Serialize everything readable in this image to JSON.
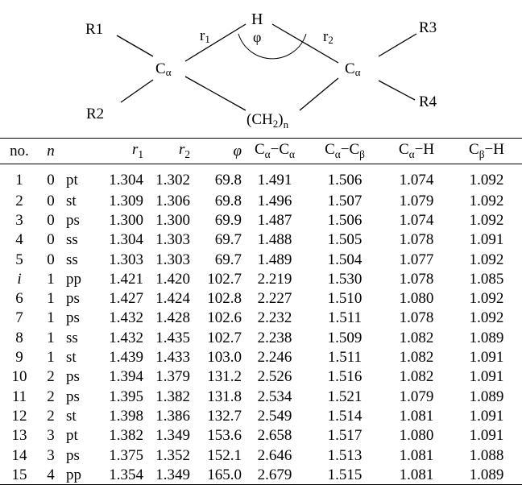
{
  "diagram": {
    "substituents": [
      "R1",
      "R2",
      "R3",
      "R4"
    ],
    "left_carbon": "C",
    "right_carbon": "C",
    "carbon_sub": "α",
    "hydrogen": "H",
    "angle": "φ",
    "bond_r1": "r",
    "bond_r1_sub": "1",
    "bond_r2": "r",
    "bond_r2_sub": "2",
    "bridge_main": "(CH",
    "bridge_sub2": "2",
    "bridge_close": ")",
    "bridge_n": "n"
  },
  "table": {
    "headers": {
      "no": "no.",
      "n": "n",
      "type": "",
      "r1": "r",
      "r1_sub": "1",
      "r2": "r",
      "r2_sub": "2",
      "phi": "φ",
      "cc": "C",
      "cc_sub1": "α",
      "cc_dash": "−C",
      "cc_sub2": "α",
      "ccb": "C",
      "ccb_sub1": "α",
      "ccb_dash": "−C",
      "ccb_sub2": "β",
      "cah": "C",
      "cah_sub": "α",
      "cah_dash": "−H",
      "cbh": "C",
      "cbh_sub": "β",
      "cbh_dash": "−H"
    },
    "rows": [
      [
        "1",
        "0",
        "pt",
        "1.304",
        "1.302",
        "69.8",
        "1.491",
        "1.506",
        "1.074",
        "1.092"
      ],
      [
        "2",
        "0",
        "st",
        "1.309",
        "1.306",
        "69.8",
        "1.496",
        "1.507",
        "1.079",
        "1.092"
      ],
      [
        "3",
        "0",
        "ps",
        "1.300",
        "1.300",
        "69.9",
        "1.487",
        "1.506",
        "1.074",
        "1.092"
      ],
      [
        "4",
        "0",
        "ss",
        "1.304",
        "1.303",
        "69.7",
        "1.488",
        "1.505",
        "1.078",
        "1.091"
      ],
      [
        "5",
        "0",
        "ss",
        "1.303",
        "1.303",
        "69.7",
        "1.489",
        "1.504",
        "1.077",
        "1.092"
      ],
      [
        "i",
        "1",
        "pp",
        "1.421",
        "1.420",
        "102.7",
        "2.219",
        "1.530",
        "1.078",
        "1.085"
      ],
      [
        "6",
        "1",
        "ps",
        "1.427",
        "1.424",
        "102.8",
        "2.227",
        "1.510",
        "1.080",
        "1.092"
      ],
      [
        "7",
        "1",
        "ps",
        "1.432",
        "1.428",
        "102.6",
        "2.232",
        "1.511",
        "1.078",
        "1.092"
      ],
      [
        "8",
        "1",
        "ss",
        "1.432",
        "1.435",
        "102.7",
        "2.238",
        "1.509",
        "1.082",
        "1.089"
      ],
      [
        "9",
        "1",
        "st",
        "1.439",
        "1.433",
        "103.0",
        "2.246",
        "1.511",
        "1.082",
        "1.091"
      ],
      [
        "10",
        "2",
        "ps",
        "1.394",
        "1.379",
        "131.2",
        "2.526",
        "1.516",
        "1.082",
        "1.091"
      ],
      [
        "11",
        "2",
        "ps",
        "1.395",
        "1.382",
        "131.8",
        "2.534",
        "1.521",
        "1.079",
        "1.089"
      ],
      [
        "12",
        "2",
        "st",
        "1.398",
        "1.386",
        "132.7",
        "2.549",
        "1.514",
        "1.081",
        "1.091"
      ],
      [
        "13",
        "3",
        "pt",
        "1.382",
        "1.349",
        "153.6",
        "2.658",
        "1.517",
        "1.080",
        "1.091"
      ],
      [
        "14",
        "3",
        "ps",
        "1.375",
        "1.352",
        "152.1",
        "2.646",
        "1.513",
        "1.081",
        "1.088"
      ],
      [
        "15",
        "4",
        "pp",
        "1.354",
        "1.349",
        "165.0",
        "2.679",
        "1.515",
        "1.081",
        "1.089"
      ]
    ]
  }
}
